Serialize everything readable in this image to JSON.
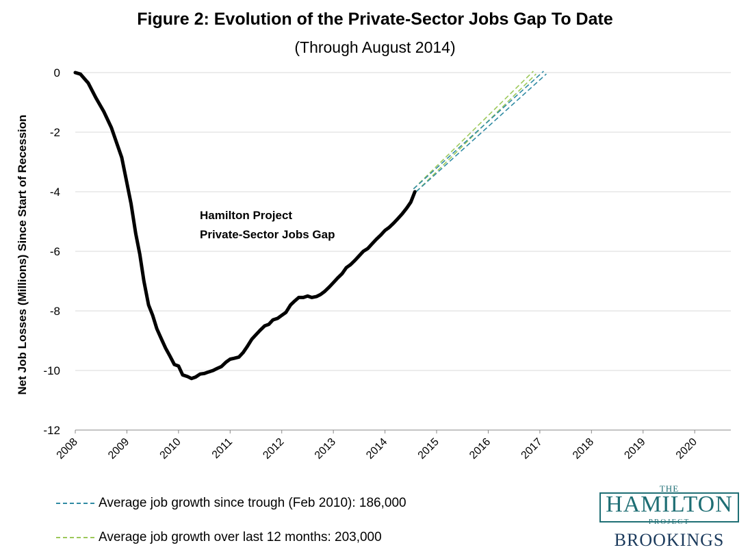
{
  "chart_data": {
    "type": "line",
    "title": "Figure 2: Evolution of the Private-Sector Jobs Gap To Date",
    "subtitle": "(Through August 2014)",
    "ylabel": "Net Job Losses (Millions) Since Start of Recession",
    "xlabel": "",
    "ylim": [
      -12,
      0
    ],
    "xlim": [
      2008,
      2020.7
    ],
    "yticks": [
      0,
      -2,
      -4,
      -6,
      -8,
      -10,
      -12
    ],
    "xticks": [
      "2008",
      "2009",
      "2010",
      "2011",
      "2012",
      "2013",
      "2014",
      "2015",
      "2016",
      "2017",
      "2018",
      "2019",
      "2020"
    ],
    "annotation": [
      "Hamilton Project",
      "Private-Sector Jobs Gap"
    ],
    "series": [
      {
        "name": "Hamilton Project Private-Sector Jobs Gap",
        "color": "#000000",
        "style": "solid",
        "x": [
          2008.0,
          2008.1,
          2008.25,
          2008.4,
          2008.55,
          2008.7,
          2008.8,
          2008.9,
          2009.0,
          2009.08,
          2009.17,
          2009.25,
          2009.33,
          2009.42,
          2009.5,
          2009.58,
          2009.67,
          2009.75,
          2009.83,
          2009.92,
          2010.0,
          2010.08,
          2010.17,
          2010.25,
          2010.33,
          2010.42,
          2010.5,
          2010.58,
          2010.67,
          2010.75,
          2010.83,
          2010.92,
          2011.0,
          2011.08,
          2011.17,
          2011.25,
          2011.33,
          2011.42,
          2011.5,
          2011.58,
          2011.67,
          2011.75,
          2011.83,
          2011.92,
          2012.0,
          2012.08,
          2012.17,
          2012.25,
          2012.33,
          2012.42,
          2012.5,
          2012.58,
          2012.67,
          2012.75,
          2012.83,
          2012.92,
          2013.0,
          2013.08,
          2013.17,
          2013.25,
          2013.33,
          2013.42,
          2013.5,
          2013.58,
          2013.67,
          2013.75,
          2013.83,
          2013.92,
          2014.0,
          2014.08,
          2014.17,
          2014.25,
          2014.33,
          2014.42,
          2014.5,
          2014.58
        ],
        "y": [
          0.0,
          -0.05,
          -0.35,
          -0.85,
          -1.3,
          -1.85,
          -2.35,
          -2.85,
          -3.7,
          -4.4,
          -5.4,
          -6.1,
          -7.0,
          -7.8,
          -8.15,
          -8.6,
          -8.95,
          -9.25,
          -9.5,
          -9.8,
          -9.85,
          -10.15,
          -10.2,
          -10.27,
          -10.22,
          -10.12,
          -10.1,
          -10.05,
          -10.0,
          -9.93,
          -9.87,
          -9.72,
          -9.62,
          -9.59,
          -9.55,
          -9.4,
          -9.2,
          -8.95,
          -8.8,
          -8.65,
          -8.5,
          -8.45,
          -8.3,
          -8.25,
          -8.15,
          -8.05,
          -7.8,
          -7.67,
          -7.55,
          -7.55,
          -7.5,
          -7.55,
          -7.52,
          -7.45,
          -7.35,
          -7.2,
          -7.05,
          -6.9,
          -6.75,
          -6.55,
          -6.45,
          -6.3,
          -6.15,
          -6.0,
          -5.9,
          -5.75,
          -5.6,
          -5.45,
          -5.3,
          -5.2,
          -5.05,
          -4.9,
          -4.75,
          -4.55,
          -4.35,
          -4.0
        ]
      },
      {
        "name": "Average job growth since trough (Feb 2010): 186,000",
        "color": "#2f8aa3",
        "style": "dashed",
        "x": [
          2014.58,
          2017.1
        ],
        "y": [
          -3.95,
          0.0
        ]
      },
      {
        "name": "Average job growth over last 12 months: 203,000",
        "color": "#9cc85a",
        "style": "dashed",
        "x": [
          2014.58,
          2016.9
        ],
        "y": [
          -3.95,
          0.0
        ]
      }
    ]
  },
  "legend": {
    "items": [
      {
        "label": "Average job growth since trough (Feb 2010): 186,000",
        "color": "#2f8aa3"
      },
      {
        "label": "Average job growth over last 12 months: 203,000",
        "color": "#9cc85a"
      }
    ]
  },
  "logo": {
    "the": "THE",
    "hamilton": "HAMILTON",
    "project": "PROJECT",
    "brookings": "BROOKINGS"
  }
}
